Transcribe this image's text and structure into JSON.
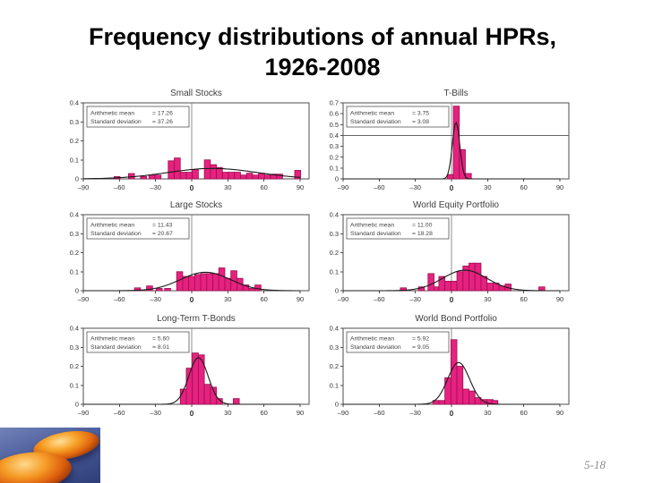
{
  "slide": {
    "title_line1": "Frequency distributions of annual HPRs,",
    "title_line2": "1926-2008"
  },
  "footer": {
    "page_number": "5-18"
  },
  "photo": {
    "description": "lava-pillows-in-blue-water"
  },
  "colors": {
    "bar_fill": "#e6217f",
    "bar_stroke": "#991050",
    "curve": "#1a1a1a",
    "axis": "#4d4d4d",
    "grid": "#666666",
    "zero_line": "#8f8f8f",
    "tick_text": "#333333",
    "title_text": "#3d3d3d",
    "stat_text": "#444444"
  },
  "chart_data": [
    {
      "id": "small-stocks",
      "type": "bar",
      "overlay": "normal-curve",
      "title": "Small Stocks",
      "stats": {
        "mean_label": "Arithmetic mean",
        "mean_text": "= 17.26",
        "sd_label": "Standard deviation",
        "sd_text": "= 37.26"
      },
      "mean": 17.26,
      "sd": 37.26,
      "curve_peak": 0.055,
      "xlim": [
        -90,
        90
      ],
      "ylim": [
        0,
        0.4
      ],
      "bin_width": 5,
      "xticks": [
        -90,
        -60,
        -30,
        0,
        30,
        60,
        90
      ],
      "yticks": [
        "0",
        "0.1",
        "0.2",
        "0.3",
        "0.4"
      ],
      "gridlines": [],
      "bars": [
        [
          -62,
          0.012
        ],
        [
          -50,
          0.028
        ],
        [
          -40,
          0.012
        ],
        [
          -33,
          0.02
        ],
        [
          -28,
          0.02
        ],
        [
          -17,
          0.095
        ],
        [
          -12,
          0.11
        ],
        [
          -7,
          0.035
        ],
        [
          -2,
          0.035
        ],
        [
          3,
          0.05
        ],
        [
          13,
          0.1
        ],
        [
          18,
          0.075
        ],
        [
          23,
          0.06
        ],
        [
          28,
          0.035
        ],
        [
          33,
          0.035
        ],
        [
          38,
          0.035
        ],
        [
          43,
          0.02
        ],
        [
          48,
          0.03
        ],
        [
          53,
          0.02
        ],
        [
          58,
          0.03
        ],
        [
          63,
          0.02
        ],
        [
          68,
          0.025
        ],
        [
          73,
          0.025
        ],
        [
          88,
          0.045
        ]
      ]
    },
    {
      "id": "t-bills",
      "type": "bar",
      "overlay": "normal-curve",
      "title": "T-Bills",
      "stats": {
        "mean_label": "Arithmetic mean",
        "mean_text": "= 3.75",
        "sd_label": "Standard deviation",
        "sd_text": "= 3.08"
      },
      "mean": 3.75,
      "sd": 3.08,
      "curve_peak": 0.52,
      "xlim": [
        -90,
        90
      ],
      "ylim": [
        0,
        0.7
      ],
      "bin_width": 5,
      "xticks": [
        -90,
        -60,
        -30,
        0,
        30,
        60,
        90
      ],
      "yticks": [
        "0",
        "0.1",
        "0.2",
        "0.3",
        "0.4",
        "0.5",
        "0.6",
        "0.7"
      ],
      "gridlines": [
        0.4
      ],
      "bars": [
        [
          -1,
          0.04
        ],
        [
          4,
          0.67
        ],
        [
          9,
          0.27
        ],
        [
          14,
          0.05
        ]
      ]
    },
    {
      "id": "large-stocks",
      "type": "bar",
      "overlay": "normal-curve",
      "title": "Large Stocks",
      "stats": {
        "mean_label": "Arithmetic mean",
        "mean_text": "= 11.43",
        "sd_label": "Standard deviation",
        "sd_text": "= 20.67"
      },
      "mean": 11.43,
      "sd": 20.67,
      "curve_peak": 0.097,
      "xlim": [
        -90,
        90
      ],
      "ylim": [
        0,
        0.4
      ],
      "bin_width": 5,
      "xticks": [
        -90,
        -60,
        -30,
        0,
        30,
        60,
        90
      ],
      "yticks": [
        "0",
        "0.1",
        "0.2",
        "0.3",
        "0.4"
      ],
      "gridlines": [],
      "bars": [
        [
          -45,
          0.015
        ],
        [
          -35,
          0.025
        ],
        [
          -27,
          0.012
        ],
        [
          -20,
          0.012
        ],
        [
          -10,
          0.1
        ],
        [
          -5,
          0.075
        ],
        [
          0,
          0.075
        ],
        [
          5,
          0.085
        ],
        [
          10,
          0.09
        ],
        [
          15,
          0.09
        ],
        [
          20,
          0.09
        ],
        [
          25,
          0.12
        ],
        [
          30,
          0.065
        ],
        [
          35,
          0.105
        ],
        [
          40,
          0.065
        ],
        [
          45,
          0.03
        ],
        [
          50,
          0.012
        ],
        [
          55,
          0.03
        ]
      ]
    },
    {
      "id": "world-equity-portfolio",
      "type": "bar",
      "overlay": "normal-curve",
      "title": "World Equity Portfolio",
      "stats": {
        "mean_label": "Arithmetic mean",
        "mean_text": "= 11.00",
        "sd_label": "Standard deviation",
        "sd_text": "= 18.28"
      },
      "mean": 11.0,
      "sd": 18.28,
      "curve_peak": 0.108,
      "xlim": [
        -90,
        90
      ],
      "ylim": [
        0,
        0.4
      ],
      "bin_width": 5,
      "xticks": [
        -90,
        -60,
        -30,
        0,
        30,
        60,
        90
      ],
      "yticks": [
        "0",
        "0.1",
        "0.2",
        "0.3",
        "0.4"
      ],
      "gridlines": [],
      "bars": [
        [
          -40,
          0.015
        ],
        [
          -25,
          0.02
        ],
        [
          -17,
          0.09
        ],
        [
          -12,
          0.02
        ],
        [
          -8,
          0.075
        ],
        [
          -3,
          0.05
        ],
        [
          2,
          0.05
        ],
        [
          7,
          0.1
        ],
        [
          12,
          0.13
        ],
        [
          17,
          0.145
        ],
        [
          22,
          0.145
        ],
        [
          27,
          0.075
        ],
        [
          32,
          0.04
        ],
        [
          37,
          0.04
        ],
        [
          42,
          0.025
        ],
        [
          47,
          0.035
        ],
        [
          75,
          0.02
        ]
      ]
    },
    {
      "id": "long-term-t-bonds",
      "type": "bar",
      "overlay": "normal-curve",
      "title": "Long-Term T-Bonds",
      "stats": {
        "mean_label": "Arithmetic mean",
        "mean_text": "= 5.60",
        "sd_label": "Standard deviation",
        "sd_text": "= 8.01"
      },
      "mean": 5.6,
      "sd": 8.01,
      "curve_peak": 0.245,
      "xlim": [
        -90,
        90
      ],
      "ylim": [
        0,
        0.4
      ],
      "bin_width": 5,
      "xticks": [
        -90,
        -60,
        -30,
        0,
        30,
        60,
        90
      ],
      "yticks": [
        "0",
        "0.1",
        "0.2",
        "0.3",
        "0.4"
      ],
      "gridlines": [],
      "bars": [
        [
          -7,
          0.08
        ],
        [
          -2,
          0.19
        ],
        [
          3,
          0.27
        ],
        [
          8,
          0.26
        ],
        [
          13,
          0.105
        ],
        [
          18,
          0.09
        ],
        [
          23,
          0.03
        ],
        [
          37,
          0.03
        ]
      ]
    },
    {
      "id": "world-bond-portfolio",
      "type": "bar",
      "overlay": "normal-curve",
      "title": "World Bond Portfolio",
      "stats": {
        "mean_label": "Arithmetic mean",
        "mean_text": "= 5.92",
        "sd_label": "Standard deviation",
        "sd_text": "= 9.05"
      },
      "mean": 5.92,
      "sd": 9.05,
      "curve_peak": 0.22,
      "xlim": [
        -90,
        90
      ],
      "ylim": [
        0,
        0.4
      ],
      "bin_width": 5,
      "xticks": [
        -90,
        -60,
        -30,
        0,
        30,
        60,
        90
      ],
      "yticks": [
        "0",
        "0.1",
        "0.2",
        "0.3",
        "0.4"
      ],
      "gridlines": [],
      "bars": [
        [
          -13,
          0.02
        ],
        [
          -8,
          0.02
        ],
        [
          -3,
          0.14
        ],
        [
          2,
          0.34
        ],
        [
          7,
          0.2
        ],
        [
          12,
          0.08
        ],
        [
          17,
          0.07
        ],
        [
          22,
          0.035
        ],
        [
          27,
          0.025
        ],
        [
          32,
          0.025
        ],
        [
          36,
          0.02
        ]
      ]
    }
  ]
}
